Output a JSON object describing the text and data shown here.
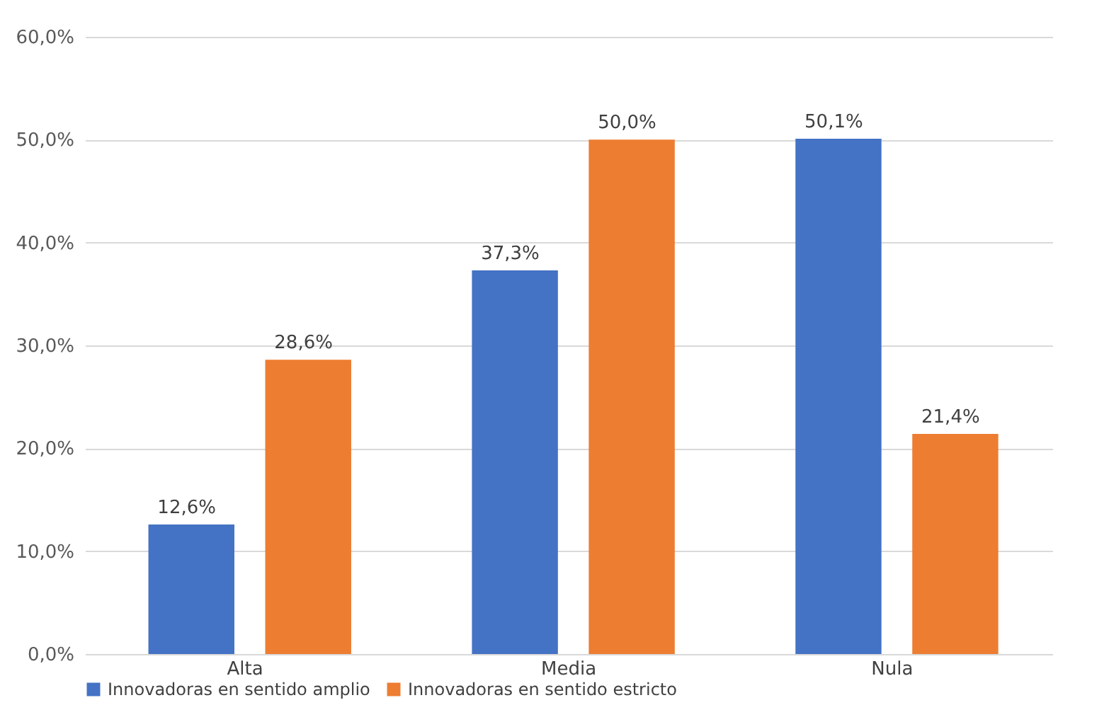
{
  "chart_data": {
    "type": "bar",
    "categories": [
      "Alta",
      "Media",
      "Nula"
    ],
    "series": [
      {
        "name": "Innovadoras en sentido amplio",
        "color": "#4472c4",
        "values": [
          12.6,
          37.3,
          50.1
        ],
        "value_labels": [
          "12,6%",
          "37,3%",
          "50,1%"
        ]
      },
      {
        "name": "Innovadoras en sentido estricto",
        "color": "#ed7d31",
        "values": [
          28.6,
          50.0,
          21.4
        ],
        "value_labels": [
          "28,6%",
          "50,0%",
          "21,4%"
        ]
      }
    ],
    "ylim": [
      0,
      60
    ],
    "yticks": [
      {
        "value": 0,
        "label": "0,0%"
      },
      {
        "value": 10,
        "label": "10,0%"
      },
      {
        "value": 20,
        "label": "20,0%"
      },
      {
        "value": 30,
        "label": "30,0%"
      },
      {
        "value": 40,
        "label": "40,0%"
      },
      {
        "value": 50,
        "label": "50,0%"
      },
      {
        "value": 60,
        "label": "60,0%"
      }
    ],
    "grid": "y",
    "legend": "bottom"
  }
}
